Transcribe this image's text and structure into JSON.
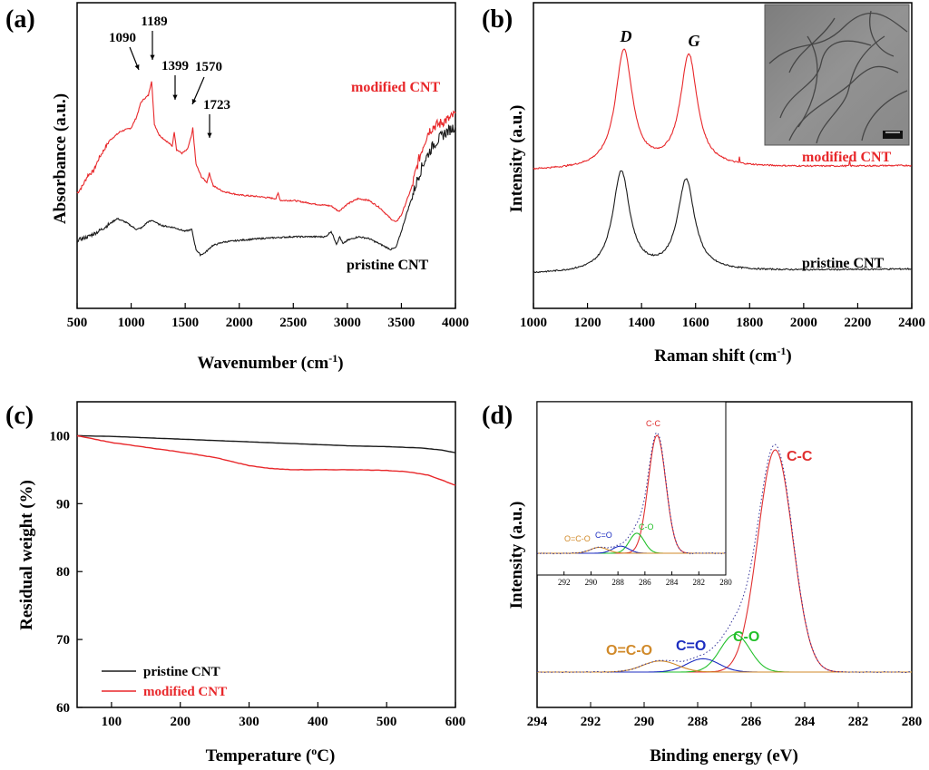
{
  "colors": {
    "pristine": "#1a1a1a",
    "modified": "#e8272a",
    "cc": "#e03030",
    "co": "#22c02a",
    "c_double_o": "#1c2dc0",
    "ocdo": "#d18a2a",
    "fit": "#333399",
    "baseline": "#d8a040"
  },
  "chart_data": [
    {
      "panel": "(a)",
      "type": "line",
      "xlabel": "Wavenumber (cm⁻¹)",
      "ylabel": "Absorbance (a.u.)",
      "xlim": [
        500,
        4000
      ],
      "xticks": [
        "500",
        "1000",
        "1500",
        "2000",
        "2500",
        "3000",
        "3500",
        "4000"
      ],
      "series": [
        {
          "name": "modified CNT",
          "label": "modified CNT",
          "x": [
            500,
            550,
            600,
            650,
            700,
            800,
            900,
            1000,
            1050,
            1090,
            1120,
            1160,
            1189,
            1215,
            1260,
            1320,
            1380,
            1399,
            1420,
            1470,
            1520,
            1560,
            1570,
            1600,
            1650,
            1700,
            1723,
            1760,
            1850,
            2000,
            2200,
            2340,
            2360,
            2380,
            2500,
            2700,
            2850,
            2920,
            2960,
            3000,
            3100,
            3200,
            3300,
            3400,
            3450,
            3500,
            3550,
            3600,
            3650,
            3700,
            3750,
            3800,
            3850,
            3900,
            3950,
            4000
          ],
          "y": [
            0.26,
            0.3,
            0.36,
            0.38,
            0.45,
            0.55,
            0.6,
            0.62,
            0.68,
            0.76,
            0.78,
            0.8,
            0.88,
            0.64,
            0.58,
            0.55,
            0.52,
            0.6,
            0.5,
            0.48,
            0.5,
            0.58,
            0.62,
            0.42,
            0.35,
            0.32,
            0.37,
            0.3,
            0.27,
            0.25,
            0.24,
            0.23,
            0.26,
            0.22,
            0.22,
            0.2,
            0.19,
            0.16,
            0.18,
            0.2,
            0.23,
            0.22,
            0.18,
            0.12,
            0.1,
            0.14,
            0.22,
            0.3,
            0.42,
            0.52,
            0.6,
            0.63,
            0.64,
            0.66,
            0.67,
            0.7
          ]
        },
        {
          "name": "pristine CNT",
          "label": "pristine CNT",
          "x": [
            500,
            600,
            700,
            800,
            870,
            950,
            1050,
            1100,
            1150,
            1200,
            1250,
            1300,
            1400,
            1500,
            1560,
            1600,
            1640,
            1680,
            1750,
            1850,
            2000,
            2200,
            2500,
            2800,
            2850,
            2900,
            2930,
            2960,
            3000,
            3100,
            3200,
            3300,
            3400,
            3450,
            3500,
            3550,
            3600,
            3650,
            3700,
            3750,
            3800,
            3850,
            3900,
            3950,
            4000
          ],
          "y": [
            0.0,
            0.02,
            0.05,
            0.09,
            0.12,
            0.1,
            0.06,
            0.07,
            0.1,
            0.11,
            0.09,
            0.08,
            0.07,
            0.05,
            0.06,
            -0.05,
            -0.08,
            -0.07,
            -0.03,
            -0.01,
            0.0,
            0.01,
            0.02,
            0.02,
            0.05,
            -0.02,
            0.02,
            -0.02,
            0.0,
            0.02,
            0.01,
            -0.02,
            -0.05,
            -0.04,
            0.05,
            0.15,
            0.24,
            0.34,
            0.42,
            0.48,
            0.53,
            0.56,
            0.59,
            0.61,
            0.63
          ]
        }
      ],
      "annotations": [
        "1090",
        "1189",
        "1399",
        "1570",
        "1723"
      ]
    },
    {
      "panel": "(b)",
      "type": "line",
      "xlabel": "Raman shift (cm⁻¹)",
      "ylabel": "Intensity (a.u.)",
      "xlim": [
        1000,
        2400
      ],
      "xticks": [
        "1000",
        "1200",
        "1400",
        "1600",
        "1800",
        "2000",
        "2200",
        "2400"
      ],
      "peak_labels": [
        "D",
        "G"
      ],
      "series": [
        {
          "name": "modified CNT",
          "label": "modified CNT",
          "D_center": 1335,
          "G_center": 1575,
          "D_height": 1.0,
          "G_height": 0.95,
          "width": 38,
          "offset": 0.62
        },
        {
          "name": "pristine CNT",
          "label": "pristine CNT",
          "D_center": 1325,
          "G_center": 1565,
          "D_height": 0.85,
          "G_height": 0.77,
          "width": 38,
          "offset": 0.0
        }
      ],
      "inset": "TEM micrograph"
    },
    {
      "panel": "(c)",
      "type": "line",
      "xlabel": "Temperature (°C)",
      "ylabel": "Residual weight (%)",
      "xlim": [
        50,
        600
      ],
      "ylim": [
        60,
        105
      ],
      "xticks": [
        "100",
        "200",
        "300",
        "400",
        "500",
        "600"
      ],
      "yticks": [
        "60",
        "70",
        "80",
        "90",
        "100"
      ],
      "series": [
        {
          "name": "pristine CNT",
          "label": "pristine CNT",
          "x": [
            50,
            100,
            150,
            200,
            250,
            300,
            350,
            400,
            450,
            500,
            550,
            580,
            600
          ],
          "y": [
            100,
            99.9,
            99.7,
            99.5,
            99.3,
            99.1,
            98.9,
            98.7,
            98.5,
            98.4,
            98.2,
            97.9,
            97.5
          ]
        },
        {
          "name": "modified CNT",
          "label": "modified CNT",
          "x": [
            50,
            100,
            150,
            200,
            250,
            300,
            330,
            360,
            400,
            450,
            500,
            530,
            560,
            580,
            600
          ],
          "y": [
            100,
            99.0,
            98.3,
            97.6,
            96.8,
            95.6,
            95.2,
            95.0,
            95.0,
            95.0,
            94.9,
            94.7,
            94.2,
            93.5,
            92.7
          ]
        }
      ],
      "legend": "bottom-left"
    },
    {
      "panel": "(d)",
      "type": "line",
      "xlabel": "Binding energy (eV)",
      "ylabel": "Intensity (a.u.)",
      "xlim": [
        294,
        280
      ],
      "xticks": [
        "294",
        "292",
        "290",
        "288",
        "286",
        "284",
        "282",
        "280"
      ],
      "components": [
        {
          "name": "C-C",
          "center": 285.1,
          "height": 1.0,
          "width": 0.65
        },
        {
          "name": "C-O",
          "center": 286.6,
          "height": 0.17,
          "width": 0.55
        },
        {
          "name": "C=O",
          "center": 287.8,
          "height": 0.06,
          "width": 0.6
        },
        {
          "name": "O=C-O",
          "center": 289.4,
          "height": 0.05,
          "width": 0.65
        }
      ],
      "inset": {
        "xticks": [
          "292",
          "290",
          "288",
          "286",
          "284",
          "282",
          "280"
        ],
        "labels": [
          "C-C",
          "C-O",
          "C=O",
          "O=C-O"
        ]
      }
    }
  ]
}
